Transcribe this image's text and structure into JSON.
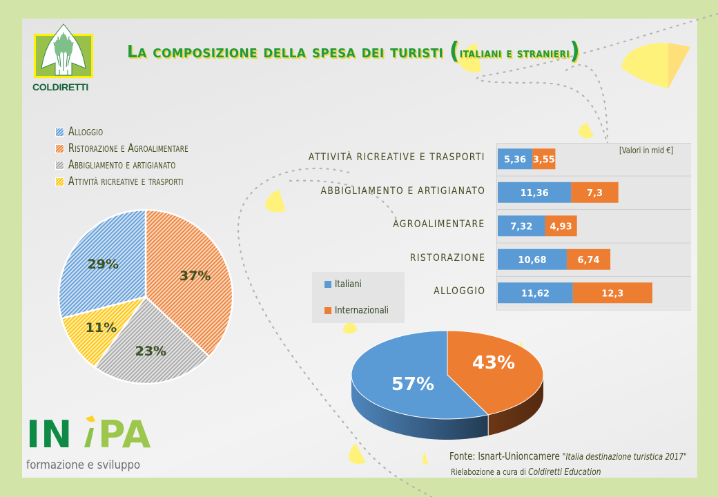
{
  "header": {
    "title_first": "L",
    "title_main": "a composizione della spesa dei turisti",
    "title_paren_open": "(",
    "title_sub": "italiani e stranieri",
    "title_paren_close": ")",
    "logo_text": "COLDIRETTI",
    "logo_icon": "wheat-shield-icon"
  },
  "footer": {
    "brand_letters": [
      "IN",
      "i",
      "PA"
    ],
    "tagline": "formazione e sviluppo",
    "source_label": "Fonte: Isnart-Unioncamere",
    "source_title": "\"Italia destinazione turistica 2017\"",
    "credit_label": "Rielabozione a cura di",
    "credit_name": "Coldiretti Education"
  },
  "colors": {
    "italiani": "#5b9bd5",
    "internazionali": "#ed7d31",
    "alloggio": "#5b9bd5",
    "ristorazione": "#ed7d31",
    "abbigliamento": "#a5a5a5",
    "attivita": "#ffc000",
    "title_green": "#1f9a43",
    "frame": "#d3e4a9"
  },
  "chart_data": [
    {
      "type": "pie",
      "title": "",
      "pattern": "hatched",
      "legend_position": "top",
      "categories": [
        "Alloggio",
        "Ristorazione e Agroalimentare",
        "Abbigliamento e artigianato",
        "Attività ricreative e trasporti"
      ],
      "values": [
        29,
        37,
        23,
        11
      ],
      "labels": [
        "29%",
        "37%",
        "23%",
        "11%"
      ],
      "draw_order": [
        1,
        2,
        3,
        0
      ]
    },
    {
      "type": "bar",
      "orientation": "horizontal",
      "stacked": true,
      "unit_note": "[Valori in mld €]",
      "categories": [
        "Attività ricreative e trasporti",
        "Abbigliamento e artigianato",
        "Agroalimentare",
        "Ristorazione",
        "Alloggio"
      ],
      "series": [
        {
          "name": "Italiani",
          "values": [
            5.36,
            11.36,
            7.32,
            10.68,
            11.62
          ],
          "labels": [
            "5,36",
            "11,36",
            "7,32",
            "10,68",
            "11,62"
          ]
        },
        {
          "name": "Internazionali",
          "values": [
            3.55,
            7.3,
            4.93,
            6.74,
            12.3
          ],
          "labels": [
            "3,55",
            "7,3",
            "4,93",
            "6,74",
            "12,3"
          ]
        }
      ],
      "xlim": [
        0,
        30
      ],
      "grid": true,
      "legend_position": "left"
    },
    {
      "type": "pie",
      "style": "3d",
      "categories": [
        "Italiani",
        "Internazionali"
      ],
      "values": [
        57,
        43
      ],
      "labels": [
        "57%",
        "43%"
      ]
    }
  ]
}
